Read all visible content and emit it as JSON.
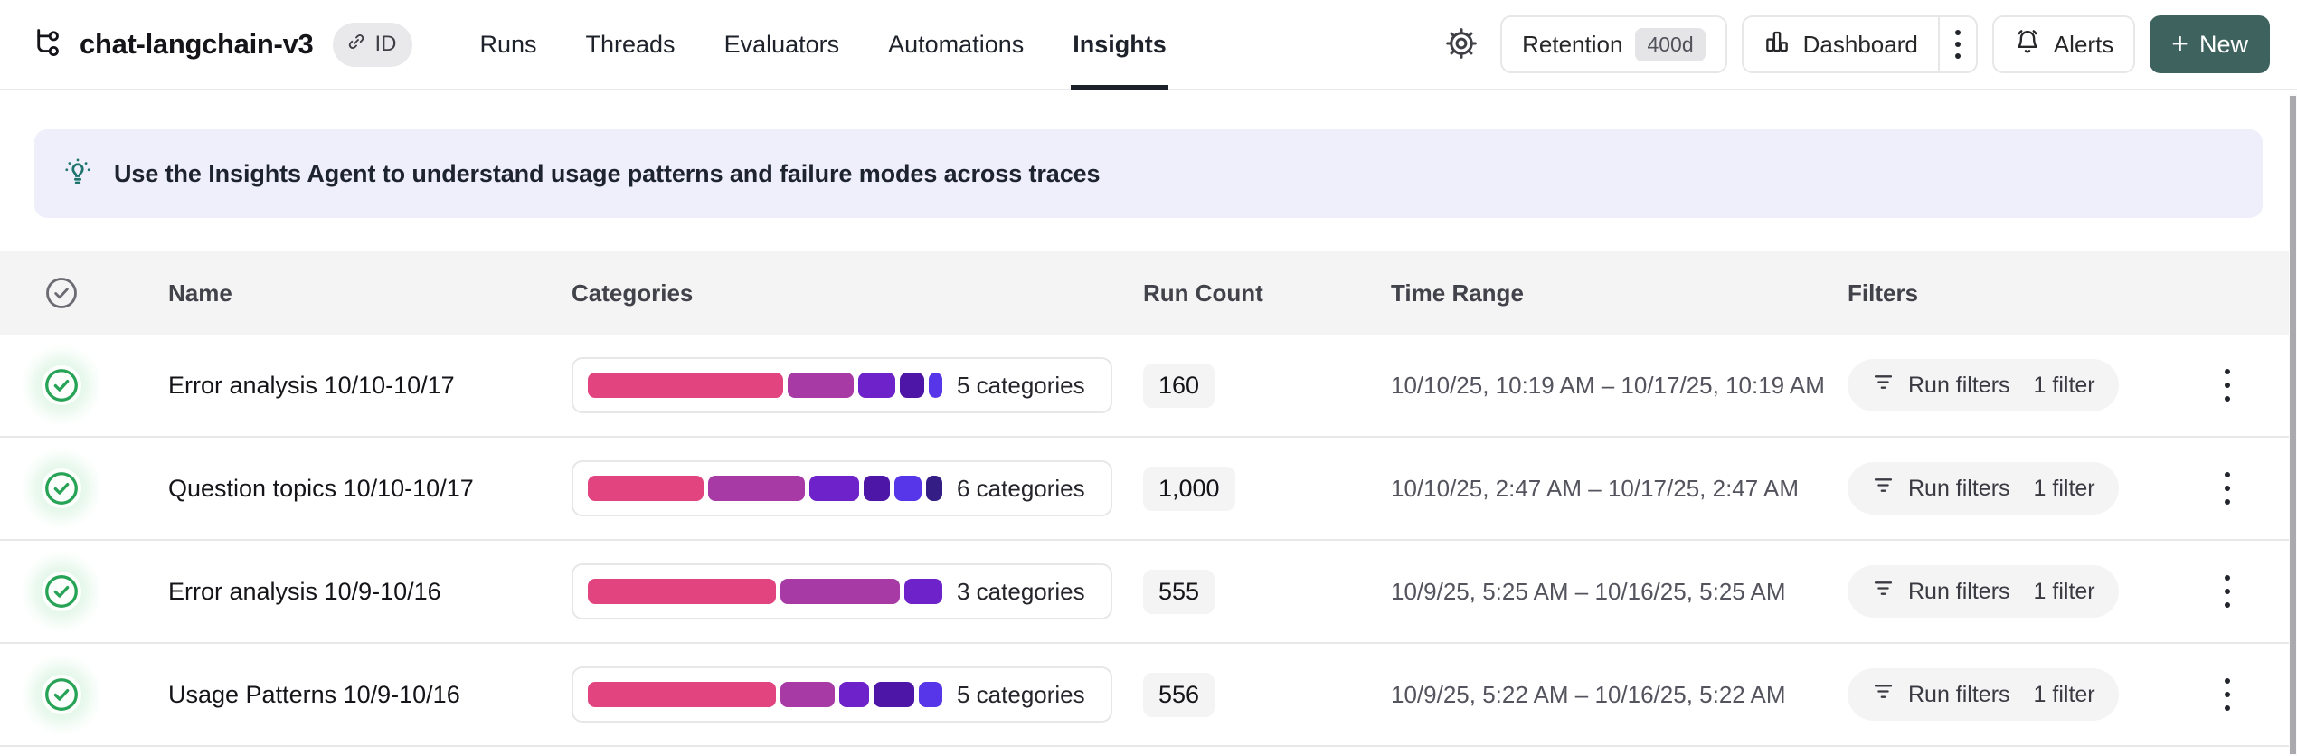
{
  "header": {
    "project_name": "chat-langchain-v3",
    "id_badge_label": "ID",
    "tabs": [
      {
        "label": "Runs",
        "active": false
      },
      {
        "label": "Threads",
        "active": false
      },
      {
        "label": "Evaluators",
        "active": false
      },
      {
        "label": "Automations",
        "active": false
      },
      {
        "label": "Insights",
        "active": true
      }
    ],
    "retention_label": "Retention",
    "retention_value": "400d",
    "dashboard_label": "Dashboard",
    "alerts_label": "Alerts",
    "new_plus": "+",
    "new_label": "New"
  },
  "banner": {
    "text": "Use the Insights Agent to understand usage patterns and failure modes across traces"
  },
  "table": {
    "columns": [
      "Name",
      "Categories",
      "Run Count",
      "Time Range",
      "Filters"
    ],
    "rows": [
      {
        "name": "Error analysis 10/10-10/17",
        "categories_label": "5 categories",
        "segments": [
          {
            "color": "#e2447f",
            "pct": 57
          },
          {
            "color": "#a73aa4",
            "pct": 19
          },
          {
            "color": "#6d23c9",
            "pct": 11
          },
          {
            "color": "#4d16a6",
            "pct": 7
          },
          {
            "color": "#5636e8",
            "pct": 4
          }
        ],
        "run_count": "160",
        "time_range": "10/10/25, 10:19 AM – 10/17/25, 10:19 AM",
        "filter_label": "Run filters",
        "filter_count": "1 filter"
      },
      {
        "name": "Question topics 10/10-10/17",
        "categories_label": "6 categories",
        "segments": [
          {
            "color": "#e2447f",
            "pct": 35
          },
          {
            "color": "#a73aa4",
            "pct": 29
          },
          {
            "color": "#6d23c9",
            "pct": 15
          },
          {
            "color": "#4d16a6",
            "pct": 8
          },
          {
            "color": "#5636e8",
            "pct": 8
          },
          {
            "color": "#341d85",
            "pct": 5
          }
        ],
        "run_count": "1,000",
        "time_range": "10/10/25, 2:47 AM – 10/17/25, 2:47 AM",
        "filter_label": "Run filters",
        "filter_count": "1 filter"
      },
      {
        "name": "Error analysis 10/9-10/16",
        "categories_label": "3 categories",
        "segments": [
          {
            "color": "#e2447f",
            "pct": 54
          },
          {
            "color": "#a73aa4",
            "pct": 34
          },
          {
            "color": "#6d23c9",
            "pct": 11
          }
        ],
        "run_count": "555",
        "time_range": "10/9/25, 5:25 AM – 10/16/25, 5:25 AM",
        "filter_label": "Run filters",
        "filter_count": "1 filter"
      },
      {
        "name": "Usage Patterns 10/9-10/16",
        "categories_label": "5 categories",
        "segments": [
          {
            "color": "#e2447f",
            "pct": 56
          },
          {
            "color": "#a73aa4",
            "pct": 16
          },
          {
            "color": "#6d23c9",
            "pct": 9
          },
          {
            "color": "#4d16a6",
            "pct": 12
          },
          {
            "color": "#5636e8",
            "pct": 7
          }
        ],
        "run_count": "556",
        "time_range": "10/9/25, 5:22 AM – 10/16/25, 5:22 AM",
        "filter_label": "Run filters",
        "filter_count": "1 filter"
      }
    ]
  },
  "colors": {
    "accent_teal": "#3e635e",
    "banner_bg": "#efeffb",
    "success_green": "#27a356",
    "pill_gray": "#f4f4f5",
    "segment_palette": [
      "#e2447f",
      "#a73aa4",
      "#6d23c9",
      "#4d16a6",
      "#5636e8",
      "#341d85"
    ]
  },
  "icons": {
    "project": "trace-tree-icon",
    "id_badge": "link-icon",
    "settings": "gear-icon",
    "dashboard": "bar-chart-icon",
    "alerts": "bell-icon",
    "banner": "lightbulb-icon",
    "row_status": "check-circle-icon",
    "filters": "filter-lines-icon",
    "row_menu": "kebab-icon"
  }
}
